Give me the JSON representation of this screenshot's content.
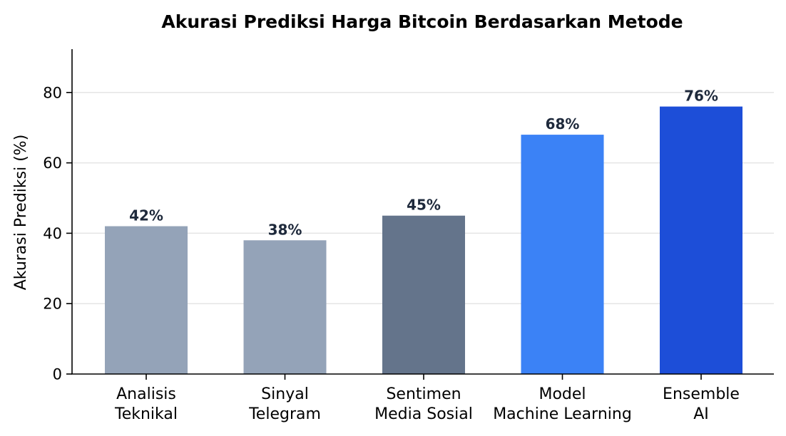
{
  "chart_data": {
    "type": "bar",
    "title": "Akurasi Prediksi Harga Bitcoin Berdasarkan Metode",
    "xlabel": "",
    "ylabel": "Akurasi Prediksi (%)",
    "ylim": [
      0,
      92
    ],
    "yticks": [
      0,
      20,
      40,
      60,
      80
    ],
    "grid": "horizontal",
    "categories": [
      [
        "Analisis",
        "Teknikal"
      ],
      [
        "Sinyal",
        "Telegram"
      ],
      [
        "Sentimen",
        "Media Sosial"
      ],
      [
        "Model",
        "Machine Learning"
      ],
      [
        "Ensemble",
        "AI"
      ]
    ],
    "values": [
      42,
      38,
      45,
      68,
      76
    ],
    "data_labels": [
      "42%",
      "38%",
      "45%",
      "68%",
      "76%"
    ],
    "colors": [
      "#94a3b8",
      "#94a3b8",
      "#64748b",
      "#3b82f6",
      "#1d4ed8"
    ]
  }
}
